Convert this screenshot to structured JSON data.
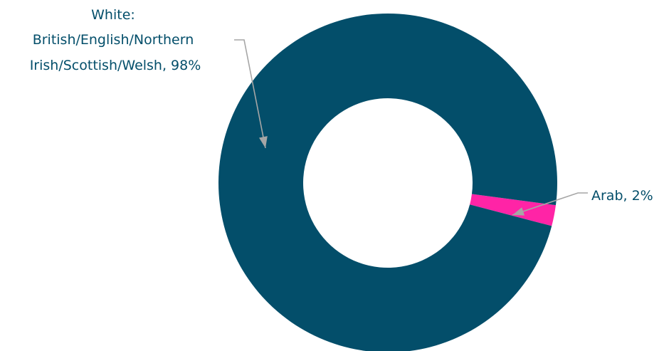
{
  "chart_data": {
    "type": "pie",
    "variant": "donut",
    "title": "",
    "slices": [
      {
        "label_lines": [
          "White:",
          "British/English/Northern",
          "Irish/Scottish/Welsh, 98%"
        ],
        "value": 98,
        "color": "#034e6a"
      },
      {
        "label_lines": [
          "Arab, 2%"
        ],
        "value": 2,
        "color": "#ff24a6"
      }
    ],
    "label_color": "#034e6a",
    "leader_color": "#a6a6a6",
    "legend": "none"
  }
}
